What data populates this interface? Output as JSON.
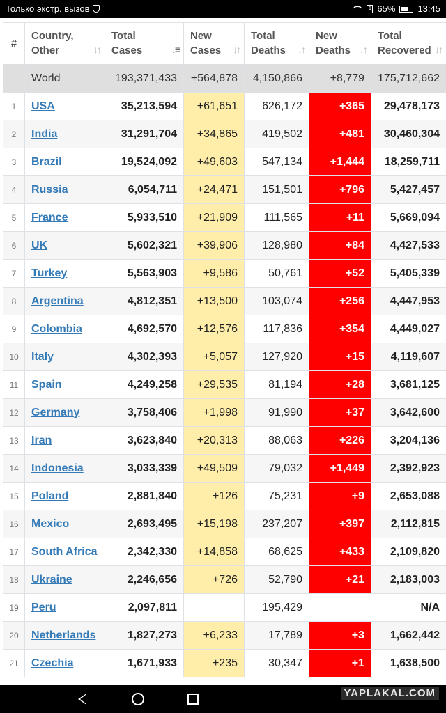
{
  "status_bar": {
    "carrier": "Только экстр. вызов",
    "sim_label": "1",
    "battery": "65%",
    "time": "13:45"
  },
  "table": {
    "headers": {
      "index": "#",
      "country": [
        "Country,",
        "Other"
      ],
      "total_cases": [
        "Total",
        "Cases"
      ],
      "new_cases": [
        "New",
        "Cases"
      ],
      "total_deaths": [
        "Total",
        "Deaths"
      ],
      "new_deaths": [
        "New",
        "Deaths"
      ],
      "total_recovered": [
        "Total",
        "Recovered"
      ]
    },
    "world": {
      "label": "World",
      "total_cases": "193,371,433",
      "new_cases": "+564,878",
      "total_deaths": "4,150,866",
      "new_deaths": "+8,779",
      "total_recovered": "175,712,662"
    },
    "rows": [
      {
        "idx": "1",
        "country": "USA",
        "total_cases": "35,213,594",
        "new_cases": "+61,651",
        "total_deaths": "626,172",
        "new_deaths": "+365",
        "recovered": "29,478,173"
      },
      {
        "idx": "2",
        "country": "India",
        "total_cases": "31,291,704",
        "new_cases": "+34,865",
        "total_deaths": "419,502",
        "new_deaths": "+481",
        "recovered": "30,460,304"
      },
      {
        "idx": "3",
        "country": "Brazil",
        "total_cases": "19,524,092",
        "new_cases": "+49,603",
        "total_deaths": "547,134",
        "new_deaths": "+1,444",
        "recovered": "18,259,711"
      },
      {
        "idx": "4",
        "country": "Russia",
        "total_cases": "6,054,711",
        "new_cases": "+24,471",
        "total_deaths": "151,501",
        "new_deaths": "+796",
        "recovered": "5,427,457"
      },
      {
        "idx": "5",
        "country": "France",
        "total_cases": "5,933,510",
        "new_cases": "+21,909",
        "total_deaths": "111,565",
        "new_deaths": "+11",
        "recovered": "5,669,094"
      },
      {
        "idx": "6",
        "country": "UK",
        "total_cases": "5,602,321",
        "new_cases": "+39,906",
        "total_deaths": "128,980",
        "new_deaths": "+84",
        "recovered": "4,427,533"
      },
      {
        "idx": "7",
        "country": "Turkey",
        "total_cases": "5,563,903",
        "new_cases": "+9,586",
        "total_deaths": "50,761",
        "new_deaths": "+52",
        "recovered": "5,405,339"
      },
      {
        "idx": "8",
        "country": "Argentina",
        "total_cases": "4,812,351",
        "new_cases": "+13,500",
        "total_deaths": "103,074",
        "new_deaths": "+256",
        "recovered": "4,447,953"
      },
      {
        "idx": "9",
        "country": "Colombia",
        "total_cases": "4,692,570",
        "new_cases": "+12,576",
        "total_deaths": "117,836",
        "new_deaths": "+354",
        "recovered": "4,449,027"
      },
      {
        "idx": "10",
        "country": "Italy",
        "total_cases": "4,302,393",
        "new_cases": "+5,057",
        "total_deaths": "127,920",
        "new_deaths": "+15",
        "recovered": "4,119,607"
      },
      {
        "idx": "11",
        "country": "Spain",
        "total_cases": "4,249,258",
        "new_cases": "+29,535",
        "total_deaths": "81,194",
        "new_deaths": "+28",
        "recovered": "3,681,125"
      },
      {
        "idx": "12",
        "country": "Germany",
        "total_cases": "3,758,406",
        "new_cases": "+1,998",
        "total_deaths": "91,990",
        "new_deaths": "+37",
        "recovered": "3,642,600"
      },
      {
        "idx": "13",
        "country": "Iran",
        "total_cases": "3,623,840",
        "new_cases": "+20,313",
        "total_deaths": "88,063",
        "new_deaths": "+226",
        "recovered": "3,204,136"
      },
      {
        "idx": "14",
        "country": "Indonesia",
        "total_cases": "3,033,339",
        "new_cases": "+49,509",
        "total_deaths": "79,032",
        "new_deaths": "+1,449",
        "recovered": "2,392,923"
      },
      {
        "idx": "15",
        "country": "Poland",
        "total_cases": "2,881,840",
        "new_cases": "+126",
        "total_deaths": "75,231",
        "new_deaths": "+9",
        "recovered": "2,653,088"
      },
      {
        "idx": "16",
        "country": "Mexico",
        "total_cases": "2,693,495",
        "new_cases": "+15,198",
        "total_deaths": "237,207",
        "new_deaths": "+397",
        "recovered": "2,112,815"
      },
      {
        "idx": "17",
        "country": "South Africa",
        "total_cases": "2,342,330",
        "new_cases": "+14,858",
        "total_deaths": "68,625",
        "new_deaths": "+433",
        "recovered": "2,109,820"
      },
      {
        "idx": "18",
        "country": "Ukraine",
        "total_cases": "2,246,656",
        "new_cases": "+726",
        "total_deaths": "52,790",
        "new_deaths": "+21",
        "recovered": "2,183,003"
      },
      {
        "idx": "19",
        "country": "Peru",
        "total_cases": "2,097,811",
        "new_cases": "",
        "total_deaths": "195,429",
        "new_deaths": "",
        "recovered": "N/A"
      },
      {
        "idx": "20",
        "country": "Netherlands",
        "total_cases": "1,827,273",
        "new_cases": "+6,233",
        "total_deaths": "17,789",
        "new_deaths": "+3",
        "recovered": "1,662,442"
      },
      {
        "idx": "21",
        "country": "Czechia",
        "total_cases": "1,671,933",
        "new_cases": "+235",
        "total_deaths": "30,347",
        "new_deaths": "+1",
        "recovered": "1,638,500"
      }
    ]
  },
  "watermark": "YAPLAKAL.COM",
  "icons": {
    "status": [
      "shield-icon",
      "wifi-icon",
      "sim-icon",
      "battery-icon"
    ],
    "nav": [
      "back-icon",
      "home-icon",
      "recent-apps-icon"
    ],
    "sort": "sort-icon"
  }
}
